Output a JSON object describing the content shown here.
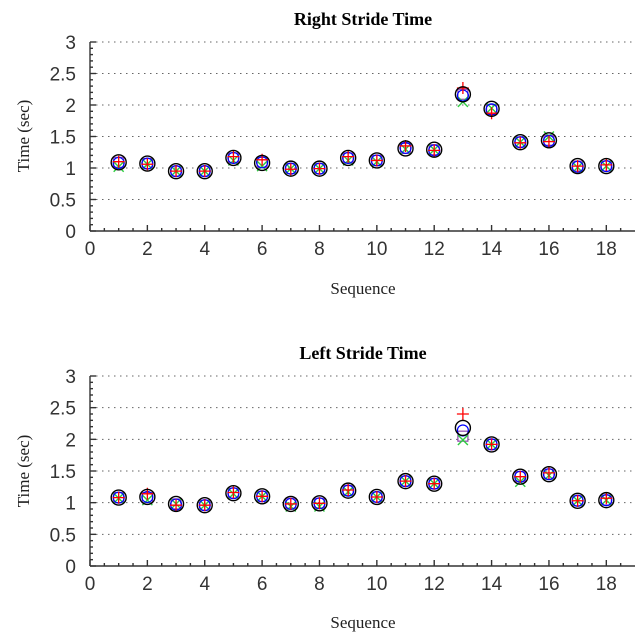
{
  "chart_data": [
    {
      "type": "scatter",
      "title": "Right Stride Time",
      "xlabel": "Sequence",
      "ylabel": "Time (sec)",
      "xlim": [
        0,
        19
      ],
      "ylim": [
        0,
        3
      ],
      "xticks": [
        0,
        2,
        4,
        6,
        8,
        10,
        12,
        14,
        16,
        18
      ],
      "yticks": [
        0,
        0.5,
        1,
        1.5,
        2,
        2.5,
        3
      ],
      "ytick_labels": [
        "0",
        "0.5",
        "1",
        "1.5",
        "2",
        "2.5",
        "3"
      ],
      "grid": "horizontal dotted",
      "series": [
        {
          "marker": "circle-large",
          "color": "#000000",
          "x": [
            1,
            2,
            3,
            4,
            5,
            6,
            7,
            8,
            9,
            10,
            11,
            12,
            13,
            14,
            15,
            16,
            17,
            18
          ],
          "values": [
            1.09,
            1.07,
            0.95,
            0.95,
            1.16,
            1.08,
            0.99,
            0.99,
            1.16,
            1.12,
            1.31,
            1.29,
            2.17,
            1.94,
            1.41,
            1.44,
            1.03,
            1.03
          ]
        },
        {
          "marker": "plus",
          "color": "#ff0000",
          "x": [
            1,
            2,
            3,
            4,
            5,
            6,
            7,
            8,
            9,
            10,
            11,
            12,
            13,
            14,
            15,
            16,
            17,
            18
          ],
          "values": [
            1.1,
            1.06,
            0.95,
            0.95,
            1.18,
            1.13,
            0.98,
            0.99,
            1.18,
            1.12,
            1.35,
            1.28,
            2.27,
            1.87,
            1.4,
            1.42,
            1.03,
            1.05
          ]
        },
        {
          "marker": "circle-small",
          "color": "#0000ff",
          "x": [
            1,
            2,
            3,
            4,
            5,
            6,
            7,
            8,
            9,
            10,
            11,
            12,
            13,
            14,
            15,
            16,
            17,
            18
          ],
          "values": [
            1.08,
            1.07,
            0.95,
            0.95,
            1.16,
            1.09,
            0.99,
            0.99,
            1.16,
            1.12,
            1.32,
            1.28,
            2.15,
            1.93,
            1.41,
            1.43,
            1.02,
            1.03
          ]
        },
        {
          "marker": "x",
          "color": "#2ecc40",
          "x": [
            1,
            2,
            3,
            4,
            5,
            6,
            7,
            8,
            9,
            10,
            11,
            12,
            13,
            14,
            15,
            16,
            17,
            18
          ],
          "values": [
            1.02,
            1.06,
            0.95,
            0.95,
            1.12,
            1.03,
            0.99,
            0.99,
            1.12,
            1.1,
            1.3,
            1.29,
            2.05,
            1.95,
            1.41,
            1.5,
            1.01,
            1.03
          ]
        },
        {
          "marker": "square",
          "color": "#8e44ad",
          "x": [
            1,
            2,
            3,
            4,
            5,
            6,
            7,
            8,
            9,
            10,
            11,
            12,
            13,
            14,
            15,
            16,
            17,
            18
          ],
          "values": [
            1.09,
            1.07,
            0.95,
            0.95,
            1.16,
            1.09,
            0.99,
            0.99,
            1.16,
            1.12,
            1.31,
            1.29,
            2.17,
            1.93,
            1.41,
            1.44,
            1.03,
            1.03
          ]
        }
      ]
    },
    {
      "type": "scatter",
      "title": "Left Stride Time",
      "xlabel": "Sequence",
      "ylabel": "Time (sec)",
      "xlim": [
        0,
        19
      ],
      "ylim": [
        0,
        3
      ],
      "xticks": [
        0,
        2,
        4,
        6,
        8,
        10,
        12,
        14,
        16,
        18
      ],
      "yticks": [
        0,
        0.5,
        1,
        1.5,
        2,
        2.5,
        3
      ],
      "ytick_labels": [
        "0",
        "0.5",
        "1",
        "1.5",
        "2",
        "2.5",
        "3"
      ],
      "grid": "horizontal dotted",
      "series": [
        {
          "marker": "circle-large",
          "color": "#000000",
          "x": [
            1,
            2,
            3,
            4,
            5,
            6,
            7,
            8,
            9,
            10,
            11,
            12,
            13,
            14,
            15,
            16,
            17,
            18
          ],
          "values": [
            1.08,
            1.09,
            0.98,
            0.96,
            1.15,
            1.1,
            0.98,
            0.99,
            1.19,
            1.09,
            1.34,
            1.3,
            2.18,
            1.92,
            1.41,
            1.45,
            1.03,
            1.04
          ]
        },
        {
          "marker": "plus",
          "color": "#ff0000",
          "x": [
            1,
            2,
            3,
            4,
            5,
            6,
            7,
            8,
            9,
            10,
            11,
            12,
            13,
            14,
            15,
            16,
            17,
            18
          ],
          "values": [
            1.08,
            1.14,
            0.96,
            0.96,
            1.16,
            1.1,
            0.98,
            0.99,
            1.2,
            1.09,
            1.34,
            1.3,
            2.4,
            1.92,
            1.41,
            1.47,
            1.03,
            1.07
          ]
        },
        {
          "marker": "circle-small",
          "color": "#0000ff",
          "x": [
            1,
            2,
            3,
            4,
            5,
            6,
            7,
            8,
            9,
            10,
            11,
            12,
            13,
            14,
            15,
            16,
            17,
            18
          ],
          "values": [
            1.08,
            1.09,
            0.97,
            0.96,
            1.15,
            1.1,
            0.98,
            0.99,
            1.19,
            1.09,
            1.34,
            1.3,
            2.14,
            1.92,
            1.41,
            1.45,
            1.03,
            1.04
          ]
        },
        {
          "marker": "x",
          "color": "#2ecc40",
          "x": [
            1,
            2,
            3,
            4,
            5,
            6,
            7,
            8,
            9,
            10,
            11,
            12,
            13,
            14,
            15,
            16,
            17,
            18
          ],
          "values": [
            1.07,
            1.04,
            0.98,
            0.96,
            1.14,
            1.1,
            0.94,
            0.94,
            1.17,
            1.09,
            1.34,
            1.3,
            1.99,
            1.92,
            1.33,
            1.43,
            1.03,
            1.04
          ]
        },
        {
          "marker": "square",
          "color": "#8e44ad",
          "x": [
            1,
            2,
            3,
            4,
            5,
            6,
            7,
            8,
            9,
            10,
            11,
            12,
            13,
            14,
            15,
            16,
            17,
            18
          ],
          "values": [
            1.08,
            1.08,
            0.98,
            0.96,
            1.15,
            1.1,
            0.99,
            0.99,
            1.19,
            1.09,
            1.34,
            1.3,
            2.05,
            1.92,
            1.41,
            1.45,
            1.03,
            1.04
          ]
        }
      ]
    }
  ]
}
